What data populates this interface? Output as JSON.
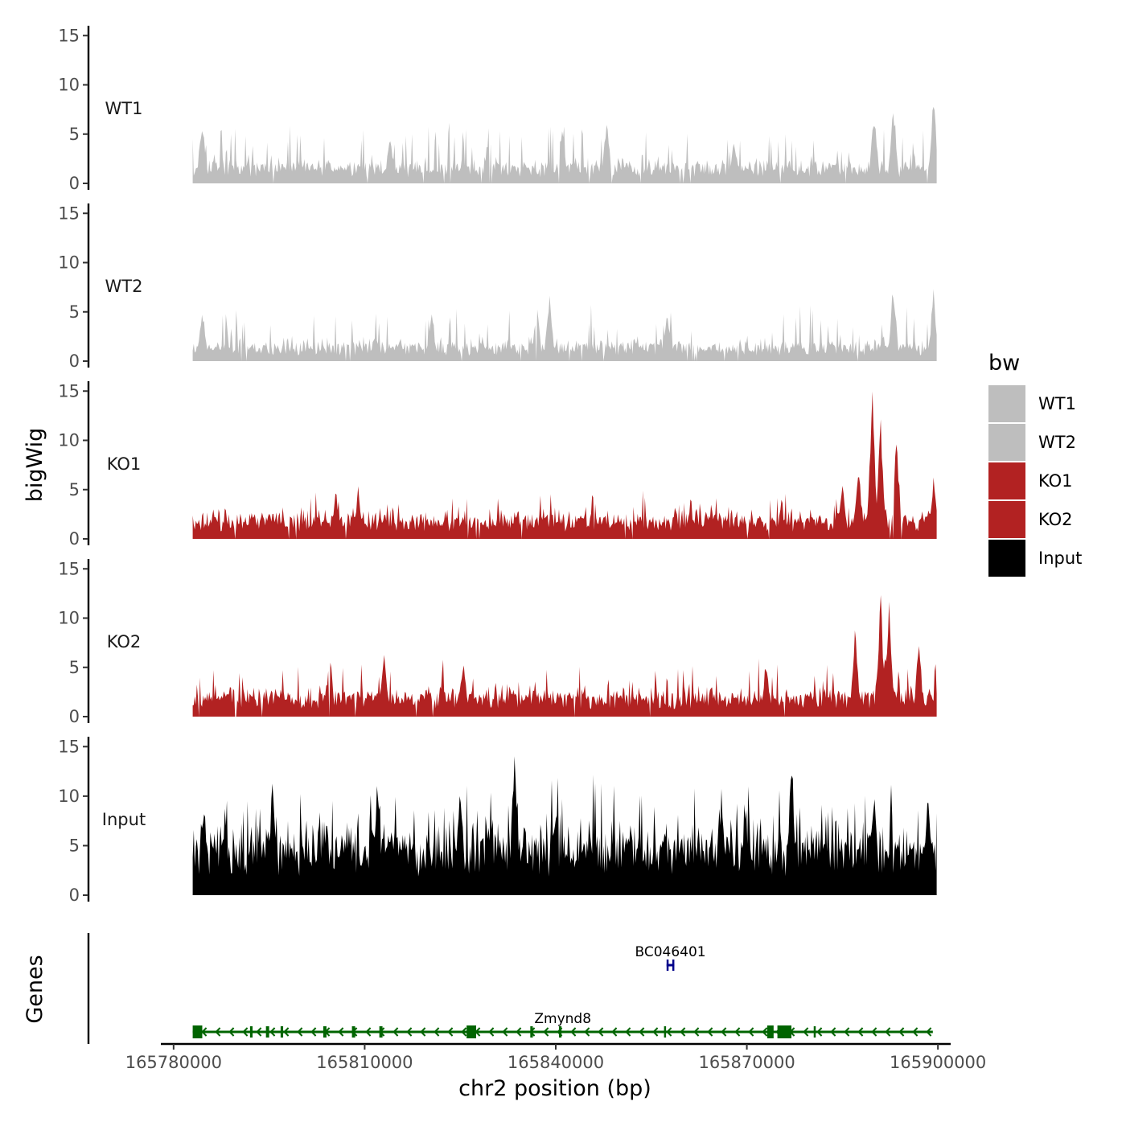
{
  "chart_data": {
    "type": "area",
    "title": "",
    "xlabel": "chr2 position (bp)",
    "ylabel": "bigWig",
    "genes_panel_label": "Genes",
    "xlim": [
      165778000,
      165902000
    ],
    "x_ticks": [
      165780000,
      165810000,
      165840000,
      165870000,
      165900000
    ],
    "x_tick_labels": [
      "165780000",
      "165810000",
      "165840000",
      "165870000",
      "165900000"
    ],
    "ylim": [
      0,
      16
    ],
    "y_ticks": [
      0,
      5,
      10,
      15
    ],
    "y_tick_labels": [
      "0",
      "5",
      "10",
      "15"
    ],
    "data_range": [
      165783000,
      165899800
    ],
    "legend": {
      "title": "bw",
      "position": "right",
      "entries": [
        {
          "label": "WT1",
          "color": "#bebebe"
        },
        {
          "label": "WT2",
          "color": "#bebebe"
        },
        {
          "label": "KO1",
          "color": "#b22222"
        },
        {
          "label": "KO2",
          "color": "#b22222"
        },
        {
          "label": "Input",
          "color": "#000000"
        }
      ]
    },
    "series": [
      {
        "name": "WT1",
        "color": "#bebebe",
        "seed": 11,
        "base": 1.3,
        "noise": 1.3,
        "spike_prob": 0.09,
        "spike_max": 4.2,
        "gap_prob": 0.02,
        "peaks": [
          [
            165784500,
            7.3
          ],
          [
            165814000,
            5.7
          ],
          [
            165829500,
            6.2
          ],
          [
            165841000,
            6.7
          ],
          [
            165848000,
            7.6
          ],
          [
            165868000,
            5.0
          ],
          [
            165890000,
            8.0
          ],
          [
            165893000,
            9.0
          ],
          [
            165899300,
            9.6
          ]
        ]
      },
      {
        "name": "WT2",
        "color": "#bebebe",
        "seed": 23,
        "base": 1.2,
        "noise": 1.2,
        "spike_prob": 0.08,
        "spike_max": 3.8,
        "gap_prob": 0.02,
        "peaks": [
          [
            165784500,
            6.0
          ],
          [
            165820500,
            5.5
          ],
          [
            165837000,
            6.2
          ],
          [
            165839000,
            7.2
          ],
          [
            165857500,
            5.3
          ],
          [
            165893000,
            8.7
          ],
          [
            165899300,
            7.6
          ]
        ]
      },
      {
        "name": "KO1",
        "color": "#b22222",
        "seed": 37,
        "base": 1.6,
        "noise": 1.4,
        "spike_prob": 0.07,
        "spike_max": 2.6,
        "gap_prob": 0.03,
        "peaks": [
          [
            165805500,
            5.2
          ],
          [
            165809000,
            5.4
          ],
          [
            165885000,
            6.5
          ],
          [
            165887500,
            8.0
          ],
          [
            165889700,
            15.6
          ],
          [
            165891000,
            13.0
          ],
          [
            165893500,
            11.0
          ],
          [
            165899300,
            6.5
          ]
        ]
      },
      {
        "name": "KO2",
        "color": "#b22222",
        "seed": 53,
        "base": 1.6,
        "noise": 1.6,
        "spike_prob": 0.09,
        "spike_max": 3.2,
        "gap_prob": 0.015,
        "peaks": [
          [
            165804500,
            7.2
          ],
          [
            165813000,
            7.3
          ],
          [
            165825500,
            6.5
          ],
          [
            165873000,
            6.0
          ],
          [
            165887000,
            9.3
          ],
          [
            165891000,
            13.0
          ],
          [
            165892300,
            12.2
          ],
          [
            165897000,
            8.0
          ]
        ]
      },
      {
        "name": "Input",
        "color": "#000000",
        "seed": 71,
        "base": 4.0,
        "noise": 3.0,
        "spike_prob": 0.15,
        "spike_max": 5.5,
        "gap_prob": 0.0,
        "peaks": [
          [
            165784800,
            11.0
          ],
          [
            165795500,
            12.5
          ],
          [
            165812000,
            12.5
          ],
          [
            165825000,
            12.5
          ],
          [
            165833500,
            15.0
          ],
          [
            165866000,
            11.2
          ],
          [
            165877000,
            16.0
          ],
          [
            165890000,
            12.5
          ],
          [
            165898500,
            12.3
          ]
        ]
      }
    ],
    "genes": [
      {
        "name": "Zmynd8",
        "color": "#006400",
        "strand": "-",
        "start": 165783000,
        "end": 165899200,
        "row": 2,
        "exons": [
          [
            165783000,
            165784500
          ],
          [
            165792000,
            165792400
          ],
          [
            165794500,
            165795000
          ],
          [
            165796800,
            165797200
          ],
          [
            165803500,
            165804000
          ],
          [
            165808000,
            165808500
          ],
          [
            165812300,
            165812800
          ],
          [
            165826000,
            165827500
          ],
          [
            165836000,
            165836400
          ],
          [
            165840500,
            165840900
          ],
          [
            165857000,
            165857300
          ],
          [
            165873200,
            165874200
          ],
          [
            165874800,
            165877000
          ],
          [
            165880500,
            165880800
          ]
        ]
      },
      {
        "name": "BC046401",
        "color": "#00008b",
        "strand": "+",
        "start": 165857400,
        "end": 165858600,
        "row": 1,
        "exons": [
          [
            165857400,
            165857700
          ],
          [
            165858300,
            165858600
          ]
        ]
      }
    ]
  }
}
